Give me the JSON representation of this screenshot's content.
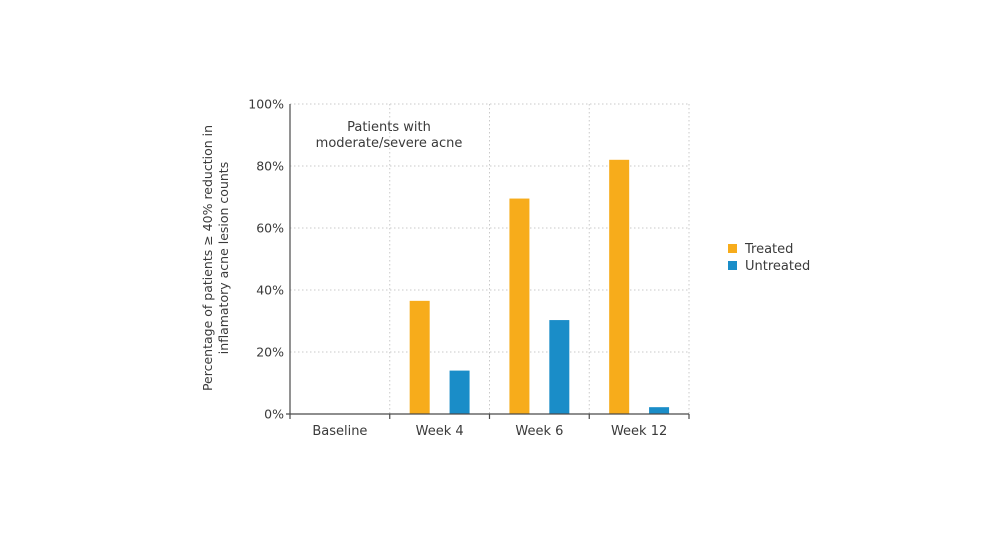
{
  "chart_data": {
    "type": "bar",
    "categories": [
      "Baseline",
      "Week 4",
      "Week 6",
      "Week 12"
    ],
    "series": [
      {
        "name": "Treated",
        "color": "#F7AC1B",
        "values": [
          0,
          36.5,
          69.5,
          82
        ]
      },
      {
        "name": "Untreated",
        "color": "#1A8DC8",
        "values": [
          0,
          14,
          30.3,
          2.2
        ]
      }
    ],
    "ylim": [
      0,
      100
    ],
    "yticks": [
      "0%",
      "20%",
      "40%",
      "60%",
      "80%",
      "100%"
    ],
    "ylabel_lines": [
      "Percentage of patients ≥ 40% reduction in",
      "inflamatory acne lesion counts"
    ],
    "annotation_lines": [
      "Patients with",
      "moderate/severe acne"
    ],
    "grid": true,
    "legend_position": "right"
  }
}
